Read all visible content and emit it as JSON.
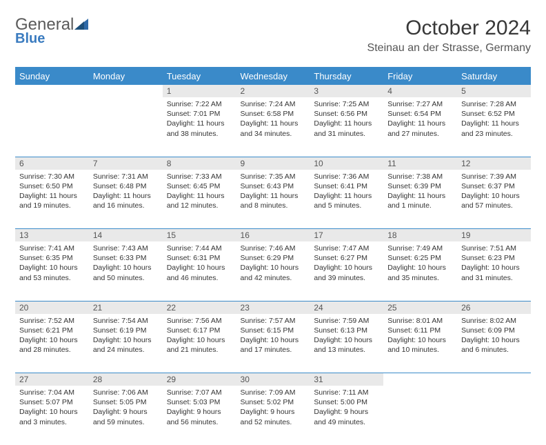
{
  "brand": {
    "name_main": "General",
    "name_sub": "Blue",
    "icon_color": "#2f6aa8"
  },
  "header": {
    "month_title": "October 2024",
    "location": "Steinau an der Strasse, Germany"
  },
  "style": {
    "header_bg": "#3a8ac9",
    "header_text": "#ffffff",
    "daynum_bg": "#e9e9e9",
    "border_color": "#3a8ac9",
    "body_text": "#333333",
    "font_family": "Arial, Helvetica, sans-serif",
    "title_fontsize_pt": 22,
    "location_fontsize_pt": 12,
    "dayhead_fontsize_pt": 10,
    "cell_fontsize_pt": 8
  },
  "day_names": [
    "Sunday",
    "Monday",
    "Tuesday",
    "Wednesday",
    "Thursday",
    "Friday",
    "Saturday"
  ],
  "weeks": [
    [
      null,
      null,
      {
        "n": "1",
        "sunrise": "7:22 AM",
        "sunset": "7:01 PM",
        "daylight": "11 hours and 38 minutes."
      },
      {
        "n": "2",
        "sunrise": "7:24 AM",
        "sunset": "6:58 PM",
        "daylight": "11 hours and 34 minutes."
      },
      {
        "n": "3",
        "sunrise": "7:25 AM",
        "sunset": "6:56 PM",
        "daylight": "11 hours and 31 minutes."
      },
      {
        "n": "4",
        "sunrise": "7:27 AM",
        "sunset": "6:54 PM",
        "daylight": "11 hours and 27 minutes."
      },
      {
        "n": "5",
        "sunrise": "7:28 AM",
        "sunset": "6:52 PM",
        "daylight": "11 hours and 23 minutes."
      }
    ],
    [
      {
        "n": "6",
        "sunrise": "7:30 AM",
        "sunset": "6:50 PM",
        "daylight": "11 hours and 19 minutes."
      },
      {
        "n": "7",
        "sunrise": "7:31 AM",
        "sunset": "6:48 PM",
        "daylight": "11 hours and 16 minutes."
      },
      {
        "n": "8",
        "sunrise": "7:33 AM",
        "sunset": "6:45 PM",
        "daylight": "11 hours and 12 minutes."
      },
      {
        "n": "9",
        "sunrise": "7:35 AM",
        "sunset": "6:43 PM",
        "daylight": "11 hours and 8 minutes."
      },
      {
        "n": "10",
        "sunrise": "7:36 AM",
        "sunset": "6:41 PM",
        "daylight": "11 hours and 5 minutes."
      },
      {
        "n": "11",
        "sunrise": "7:38 AM",
        "sunset": "6:39 PM",
        "daylight": "11 hours and 1 minute."
      },
      {
        "n": "12",
        "sunrise": "7:39 AM",
        "sunset": "6:37 PM",
        "daylight": "10 hours and 57 minutes."
      }
    ],
    [
      {
        "n": "13",
        "sunrise": "7:41 AM",
        "sunset": "6:35 PM",
        "daylight": "10 hours and 53 minutes."
      },
      {
        "n": "14",
        "sunrise": "7:43 AM",
        "sunset": "6:33 PM",
        "daylight": "10 hours and 50 minutes."
      },
      {
        "n": "15",
        "sunrise": "7:44 AM",
        "sunset": "6:31 PM",
        "daylight": "10 hours and 46 minutes."
      },
      {
        "n": "16",
        "sunrise": "7:46 AM",
        "sunset": "6:29 PM",
        "daylight": "10 hours and 42 minutes."
      },
      {
        "n": "17",
        "sunrise": "7:47 AM",
        "sunset": "6:27 PM",
        "daylight": "10 hours and 39 minutes."
      },
      {
        "n": "18",
        "sunrise": "7:49 AM",
        "sunset": "6:25 PM",
        "daylight": "10 hours and 35 minutes."
      },
      {
        "n": "19",
        "sunrise": "7:51 AM",
        "sunset": "6:23 PM",
        "daylight": "10 hours and 31 minutes."
      }
    ],
    [
      {
        "n": "20",
        "sunrise": "7:52 AM",
        "sunset": "6:21 PM",
        "daylight": "10 hours and 28 minutes."
      },
      {
        "n": "21",
        "sunrise": "7:54 AM",
        "sunset": "6:19 PM",
        "daylight": "10 hours and 24 minutes."
      },
      {
        "n": "22",
        "sunrise": "7:56 AM",
        "sunset": "6:17 PM",
        "daylight": "10 hours and 21 minutes."
      },
      {
        "n": "23",
        "sunrise": "7:57 AM",
        "sunset": "6:15 PM",
        "daylight": "10 hours and 17 minutes."
      },
      {
        "n": "24",
        "sunrise": "7:59 AM",
        "sunset": "6:13 PM",
        "daylight": "10 hours and 13 minutes."
      },
      {
        "n": "25",
        "sunrise": "8:01 AM",
        "sunset": "6:11 PM",
        "daylight": "10 hours and 10 minutes."
      },
      {
        "n": "26",
        "sunrise": "8:02 AM",
        "sunset": "6:09 PM",
        "daylight": "10 hours and 6 minutes."
      }
    ],
    [
      {
        "n": "27",
        "sunrise": "7:04 AM",
        "sunset": "5:07 PM",
        "daylight": "10 hours and 3 minutes."
      },
      {
        "n": "28",
        "sunrise": "7:06 AM",
        "sunset": "5:05 PM",
        "daylight": "9 hours and 59 minutes."
      },
      {
        "n": "29",
        "sunrise": "7:07 AM",
        "sunset": "5:03 PM",
        "daylight": "9 hours and 56 minutes."
      },
      {
        "n": "30",
        "sunrise": "7:09 AM",
        "sunset": "5:02 PM",
        "daylight": "9 hours and 52 minutes."
      },
      {
        "n": "31",
        "sunrise": "7:11 AM",
        "sunset": "5:00 PM",
        "daylight": "9 hours and 49 minutes."
      },
      null,
      null
    ]
  ],
  "labels": {
    "sunrise_prefix": "Sunrise: ",
    "sunset_prefix": "Sunset: ",
    "daylight_prefix": "Daylight: "
  }
}
